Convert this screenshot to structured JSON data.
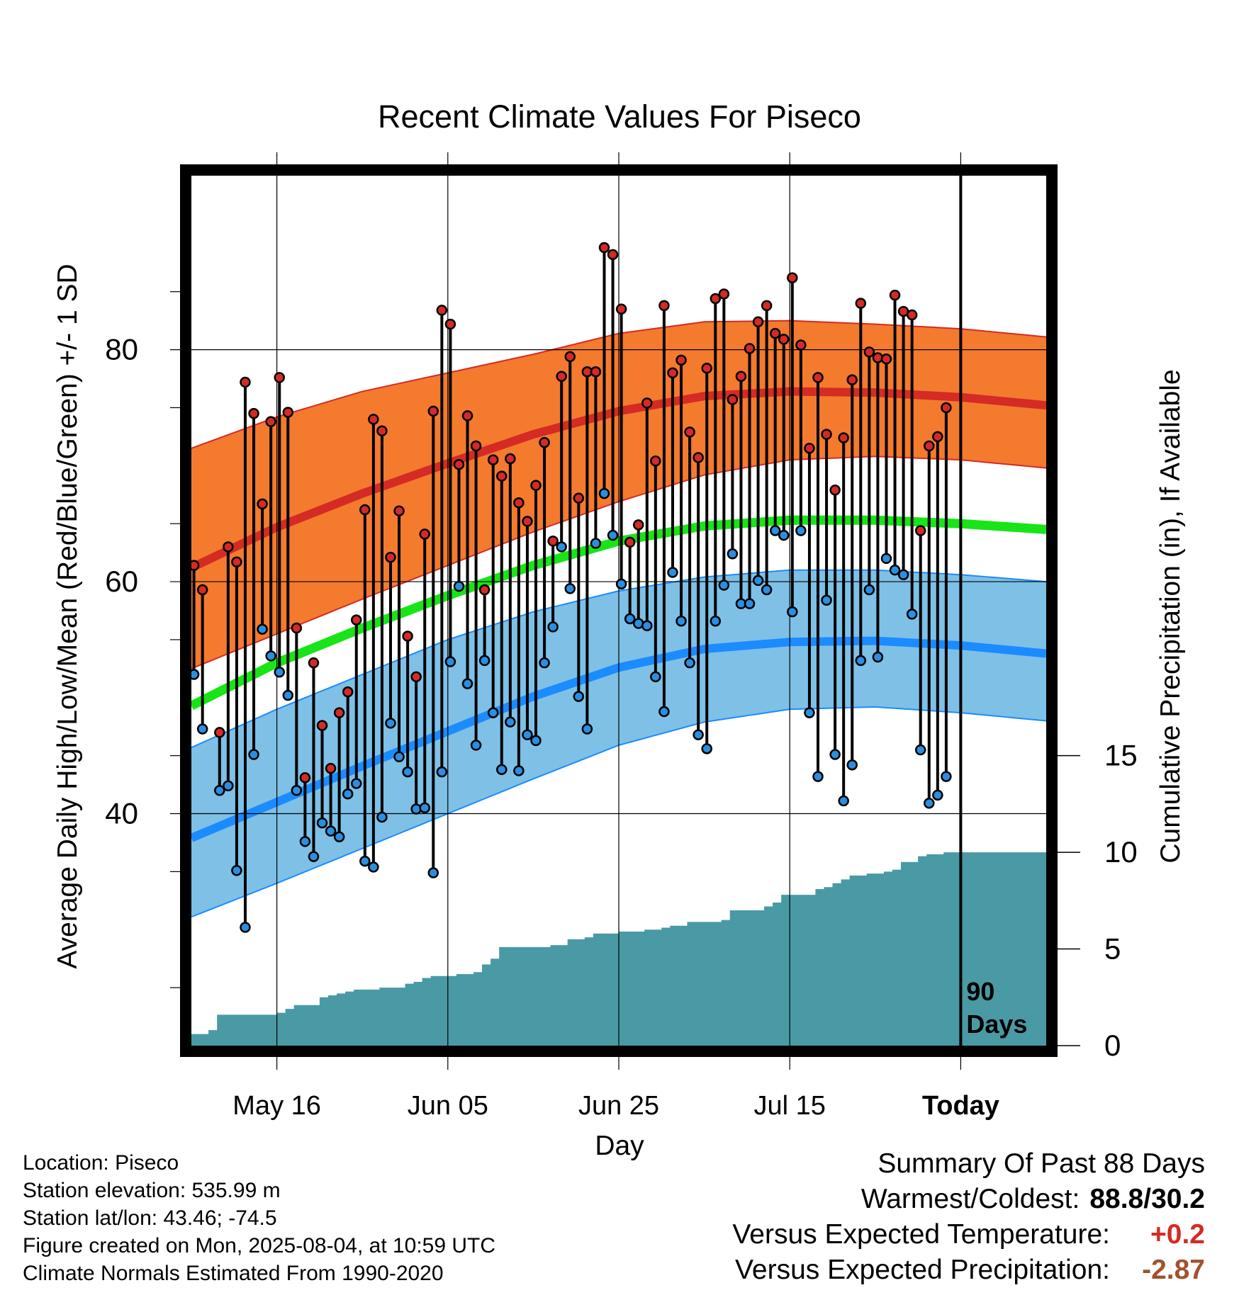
{
  "chart_data": {
    "type": "line",
    "title": "Recent Climate Values For Piseco",
    "xlabel": "Day",
    "ylabel": "Average Daily High/Low/Mean (Red/Blue/Green) +/- 1 SD",
    "y2label": "Cumulative Precipitation (in), If Available",
    "xticks": [
      "May 16",
      "Jun 05",
      "Jun 25",
      "Jul 15",
      "Today"
    ],
    "xtick_days": [
      10,
      30,
      50,
      70,
      90
    ],
    "xlim": [
      0,
      100
    ],
    "ylim": [
      20,
      95
    ],
    "yticks": [
      40,
      60,
      80
    ],
    "y2ticks": [
      0,
      5,
      10,
      15
    ],
    "y2lim": [
      0,
      45.0
    ],
    "today_label": "90 Days",
    "grid": true,
    "normal_high": {
      "days": [
        0,
        10,
        20,
        30,
        40,
        50,
        60,
        70,
        80,
        90,
        100
      ],
      "values": [
        61.2,
        64.7,
        67.6,
        70.2,
        72.7,
        74.7,
        76.0,
        76.4,
        76.3,
        75.9,
        75.2
      ]
    },
    "normal_high_upper": {
      "days": [
        0,
        10,
        20,
        30,
        40,
        50,
        60,
        70,
        80,
        90,
        100
      ],
      "values": [
        71.5,
        74.2,
        76.4,
        78.0,
        79.6,
        81.4,
        82.4,
        82.5,
        82.2,
        81.8,
        81.1
      ]
    },
    "normal_high_lower": {
      "days": [
        0,
        10,
        20,
        30,
        40,
        50,
        60,
        70,
        80,
        90,
        100
      ],
      "values": [
        52.5,
        55.5,
        58.5,
        61.4,
        64.3,
        66.9,
        69.2,
        70.5,
        70.8,
        70.5,
        69.8
      ]
    },
    "normal_mean": {
      "days": [
        0,
        10,
        20,
        30,
        40,
        50,
        60,
        70,
        80,
        90,
        100
      ],
      "values": [
        49.3,
        53.0,
        56.0,
        58.8,
        61.4,
        63.5,
        64.8,
        65.3,
        65.3,
        65.0,
        64.5
      ]
    },
    "normal_low": {
      "days": [
        0,
        10,
        20,
        30,
        40,
        50,
        60,
        70,
        80,
        90,
        100
      ],
      "values": [
        37.9,
        41.0,
        44.1,
        47.1,
        50.1,
        52.6,
        54.2,
        54.8,
        54.9,
        54.5,
        53.8
      ]
    },
    "normal_low_upper": {
      "days": [
        0,
        10,
        20,
        30,
        40,
        50,
        60,
        70,
        80,
        90,
        100
      ],
      "values": [
        45.7,
        49.0,
        52.0,
        55.0,
        57.4,
        59.2,
        60.4,
        61.0,
        61.0,
        60.6,
        60.0
      ]
    },
    "normal_low_lower": {
      "days": [
        0,
        10,
        20,
        30,
        40,
        50,
        60,
        70,
        80,
        90,
        100
      ],
      "values": [
        31.1,
        34.0,
        37.0,
        40.0,
        43.0,
        45.9,
        47.9,
        49.0,
        49.2,
        48.7,
        48.0
      ]
    },
    "daily_high": [
      61.4,
      59.3,
      null,
      47.0,
      63.0,
      61.7,
      77.2,
      74.5,
      66.7,
      73.8,
      77.6,
      74.6,
      56.0,
      43.1,
      53.0,
      47.6,
      43.9,
      48.7,
      50.5,
      56.7,
      66.2,
      74.0,
      73.0,
      62.1,
      66.1,
      55.3,
      51.8,
      64.1,
      74.7,
      83.4,
      82.2,
      70.1,
      74.3,
      71.7,
      59.3,
      70.5,
      69.1,
      70.6,
      66.8,
      65.2,
      68.3,
      72.0,
      63.5,
      77.7,
      79.4,
      67.2,
      78.1,
      78.1,
      88.8,
      88.2,
      83.5,
      63.4,
      64.9,
      75.4,
      70.4,
      83.8,
      78.0,
      79.1,
      72.9,
      70.7,
      78.4,
      84.4,
      84.8,
      75.7,
      77.7,
      80.1,
      82.4,
      83.8,
      81.4,
      80.9,
      86.2,
      80.4,
      71.5,
      77.6,
      72.7,
      67.9,
      72.4,
      77.4,
      84.0,
      79.8,
      79.3,
      79.2,
      84.7,
      83.3,
      83.0,
      64.4,
      71.7,
      72.5,
      75.0
    ],
    "daily_low": [
      52.0,
      47.3,
      null,
      42.0,
      42.4,
      35.1,
      30.2,
      45.1,
      55.9,
      53.6,
      52.2,
      50.2,
      42.0,
      37.6,
      36.3,
      39.2,
      38.5,
      38.0,
      41.7,
      42.6,
      35.9,
      35.4,
      39.7,
      47.8,
      44.9,
      43.6,
      40.4,
      40.5,
      34.9,
      43.6,
      53.1,
      59.6,
      51.2,
      45.9,
      53.2,
      48.7,
      43.8,
      47.9,
      43.7,
      46.8,
      46.3,
      53.0,
      56.1,
      63.0,
      59.4,
      50.1,
      47.3,
      63.3,
      67.6,
      64.0,
      59.8,
      56.8,
      56.4,
      56.2,
      51.8,
      48.8,
      60.8,
      56.6,
      53.0,
      46.8,
      45.6,
      56.6,
      59.7,
      62.4,
      58.1,
      58.1,
      60.1,
      59.3,
      64.4,
      64.0,
      57.4,
      64.4,
      48.7,
      43.2,
      58.4,
      45.1,
      41.1,
      44.2,
      53.2,
      59.3,
      53.5,
      62.0,
      61.0,
      60.6,
      57.2,
      45.5,
      40.9,
      41.6,
      43.2
    ],
    "precip_days": [
      0,
      2,
      3,
      7,
      10,
      11,
      12,
      14,
      15,
      16,
      17,
      18,
      19,
      20,
      22,
      23,
      25,
      26,
      27,
      28,
      31,
      33,
      34,
      35,
      36,
      42,
      43,
      44,
      46,
      47,
      50,
      53,
      55,
      56,
      58,
      62,
      63,
      67,
      68,
      69,
      71,
      72,
      73,
      74,
      75,
      76,
      77,
      79,
      81,
      82,
      83,
      85,
      86,
      88,
      90,
      100
    ],
    "precip_cum": [
      0.6,
      0.8,
      1.6,
      1.6,
      1.7,
      1.9,
      2.1,
      2.1,
      2.5,
      2.6,
      2.7,
      2.8,
      2.9,
      2.9,
      3.0,
      3.0,
      3.2,
      3.3,
      3.5,
      3.6,
      3.7,
      3.8,
      4.2,
      4.5,
      5.1,
      5.2,
      5.2,
      5.5,
      5.6,
      5.8,
      5.9,
      6.0,
      6.1,
      6.2,
      6.4,
      6.5,
      7.0,
      7.2,
      7.4,
      7.8,
      7.8,
      7.8,
      8.1,
      8.2,
      8.4,
      8.6,
      8.8,
      8.9,
      9.0,
      9.1,
      9.5,
      9.8,
      9.9,
      10.0,
      10.0,
      10.0
    ],
    "colors": {
      "high_band": "#f47a2e",
      "high_line": "#d42b25",
      "low_band": "#7fc0e6",
      "low_line": "#1a8cff",
      "mean_line": "#18e418",
      "precip": "#4a9aa5",
      "high_dot": "#d42b25",
      "low_dot": "#2a8fe0"
    }
  },
  "footer": {
    "location": "Location: Piseco",
    "elevation": "Station elevation: 535.99 m",
    "latlon": "Station lat/lon: 43.46; -74.5",
    "created": "Figure created on Mon, 2025-08-04, at 10:59 UTC",
    "normals": "Climate Normals Estimated From 1990-2020"
  },
  "summary": {
    "title": "Summary Of Past 88 Days",
    "warmest_label": "Warmest/Coldest:",
    "warmest_value": "88.8/30.2",
    "temp_label": "Versus Expected Temperature:",
    "temp_value": "+0.2",
    "temp_color": "#d42b25",
    "precip_label": "Versus Expected Precipitation:",
    "precip_value": "-2.87",
    "precip_color": "#a0522d"
  }
}
